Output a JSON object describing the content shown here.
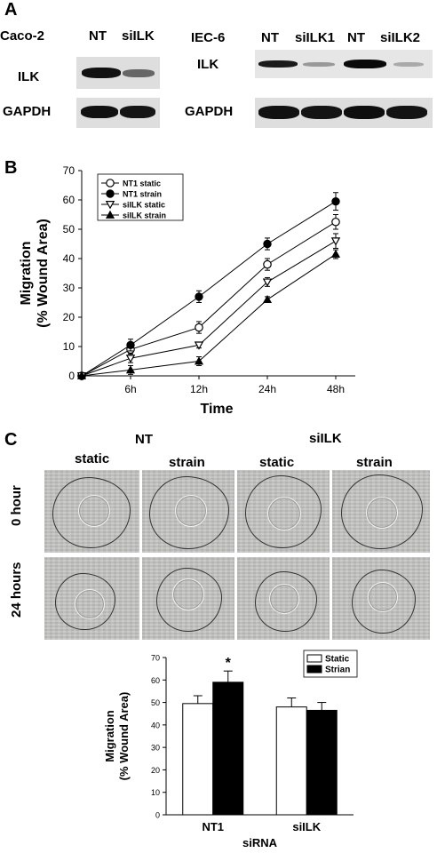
{
  "panel_a": {
    "letter": "A",
    "left": {
      "cell_line": "Caco-2",
      "lanes": [
        "NT",
        "siILK"
      ],
      "rows": [
        "ILK",
        "GAPDH"
      ]
    },
    "right": {
      "cell_line": "IEC-6",
      "lanes": [
        "NT",
        "siILK1",
        "NT",
        "siILK2"
      ],
      "rows": [
        "ILK",
        "GAPDH"
      ]
    }
  },
  "panel_b_letter": "B",
  "panel_c": {
    "letter": "C",
    "group_nt": "NT",
    "group_silk": "siILK",
    "conditions": [
      "static",
      "strain",
      "static",
      "strain"
    ],
    "rows": [
      "0 hour",
      "24 hours"
    ],
    "significance": "*"
  },
  "chart_data": [
    {
      "type": "line",
      "xlabel": "Time",
      "ylabel": [
        "Migration",
        "(% Wound Area)"
      ],
      "categories": [
        "",
        "6h",
        "12h",
        "24h",
        "48h"
      ],
      "ylim": [
        0,
        70
      ],
      "yticks": [
        0,
        10,
        20,
        30,
        40,
        50,
        60,
        70
      ],
      "legend_position": "top-left",
      "series": [
        {
          "name": "NT1 static",
          "marker": "open-circle",
          "values": [
            0,
            9,
            16.5,
            38,
            52.5
          ],
          "errors": [
            0,
            1.5,
            2,
            2,
            2.5
          ]
        },
        {
          "name": "NT1 strain",
          "marker": "filled-circle",
          "values": [
            0,
            10.5,
            27,
            45,
            59.5
          ],
          "errors": [
            0,
            2,
            2,
            2,
            3
          ]
        },
        {
          "name": "siILK static",
          "marker": "open-triangle-down",
          "values": [
            0,
            6,
            10.5,
            32,
            46
          ],
          "errors": [
            0,
            1.5,
            1,
            1.5,
            2.5
          ]
        },
        {
          "name": "siILK strain",
          "marker": "filled-triangle-up",
          "values": [
            0,
            2,
            5,
            26,
            41.5
          ],
          "errors": [
            0,
            1.5,
            1.5,
            1,
            1.5
          ]
        }
      ]
    },
    {
      "type": "bar",
      "xlabel": "siRNA",
      "ylabel": [
        "Migration",
        "(% Wound Area)"
      ],
      "categories": [
        "NT1",
        "siILK"
      ],
      "ylim": [
        0,
        70
      ],
      "yticks": [
        0,
        10,
        20,
        30,
        40,
        50,
        60,
        70
      ],
      "legend_position": "top-right",
      "series": [
        {
          "name": "Static",
          "color": "#ffffff",
          "values": [
            49.5,
            48
          ],
          "errors": [
            3.5,
            4
          ]
        },
        {
          "name": "Strian",
          "color": "#000000",
          "values": [
            59,
            46.5
          ],
          "errors": [
            5,
            3.5
          ]
        }
      ]
    }
  ]
}
